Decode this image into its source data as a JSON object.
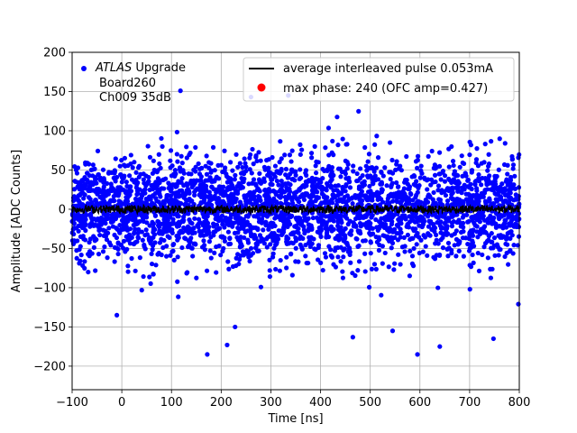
{
  "chart_data": {
    "type": "scatter",
    "xlabel": "Time [ns]",
    "ylabel": "Amplitude [ADC Counts]",
    "xlim": [
      -100,
      800
    ],
    "ylim": [
      -230,
      200
    ],
    "xticks": [
      -100,
      0,
      100,
      200,
      300,
      400,
      500,
      600,
      700,
      800
    ],
    "yticks": [
      -200,
      -150,
      -100,
      -50,
      0,
      50,
      100,
      150,
      200
    ],
    "grid": true,
    "legend_position": "top-right",
    "annotation": {
      "atlas_italic": "ATLAS",
      "atlas_rest": " Upgrade",
      "line2": "Board260",
      "line3": "Ch009 35dB",
      "marker_color": "#0000ff"
    },
    "series": [
      {
        "name": "",
        "kind": "scatter",
        "color": "#0000ff",
        "description": "dense noise samples, roughly uniform over time, spread about 0",
        "x_range": [
          -100,
          800
        ],
        "y_core_range": [
          -90,
          90
        ],
        "y_extreme_range": [
          -185,
          152
        ],
        "notable_points": [
          {
            "x": 118,
            "y": 151
          },
          {
            "x": 172,
            "y": -185
          },
          {
            "x": 212,
            "y": -173
          },
          {
            "x": 228,
            "y": -150
          },
          {
            "x": 465,
            "y": -163
          },
          {
            "x": 595,
            "y": -185
          },
          {
            "x": 640,
            "y": -175
          },
          {
            "x": 748,
            "y": -165
          },
          {
            "x": 545,
            "y": -155
          },
          {
            "x": -10,
            "y": -135
          },
          {
            "x": 260,
            "y": 143
          },
          {
            "x": 335,
            "y": 145
          }
        ]
      },
      {
        "name": "average interleaved pulse 0.053mA",
        "kind": "line",
        "color": "#000000",
        "description": "flat average pulse near zero",
        "x_range": [
          -100,
          800
        ],
        "y_value": 0,
        "y_jitter": 5
      },
      {
        "name": "max phase: 240 (OFC amp=0.427)",
        "kind": "marker",
        "color": "#ff0000"
      }
    ]
  }
}
